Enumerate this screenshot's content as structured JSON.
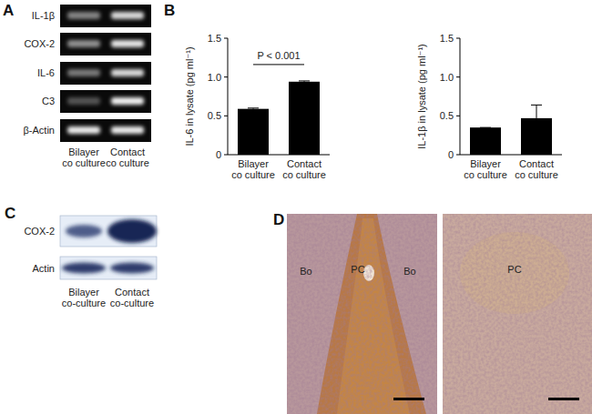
{
  "panel_labels": [
    "A",
    "B",
    "C",
    "D"
  ],
  "gel": {
    "genes": [
      "IL-1β",
      "COX-2",
      "IL-6",
      "C3",
      "β-Actin"
    ],
    "lanes": [
      "Bilayer co culture",
      "Contact co culture"
    ]
  },
  "chart_data": [
    {
      "type": "bar",
      "y_label": "IL-6 in lysate (pg ml⁻¹)",
      "categories": [
        "Bilayer co culture",
        "Contact co culture"
      ],
      "values": [
        0.59,
        0.94
      ],
      "errors": [
        0.01,
        0.01
      ],
      "color": "#000000",
      "ylim": [
        0,
        1.5
      ],
      "yticks": [
        0,
        0.5,
        {
          "value": 1,
          "label": "1.0"
        },
        1.5
      ],
      "annotation": "P < 0.001"
    },
    {
      "type": "bar",
      "y_label": "IL-1β in lysate (pg ml⁻¹)",
      "categories": [
        "Bilayer co culture",
        "Contact co culture"
      ],
      "values": [
        0.35,
        0.47
      ],
      "errors": [
        0,
        0.17
      ],
      "color": "#000000",
      "ylim": [
        0,
        1.5
      ],
      "yticks": [
        0,
        0.5,
        {
          "value": 1,
          "label": "1.0"
        },
        1.5
      ]
    }
  ],
  "blot": {
    "proteins": [
      "COX-2",
      "Actin"
    ],
    "lanes": [
      "Bilayer co-culture",
      "Contact co-culture"
    ]
  },
  "histology": {
    "left": [
      "Bo",
      "PC",
      "Bo"
    ],
    "right": [
      "PC"
    ]
  }
}
